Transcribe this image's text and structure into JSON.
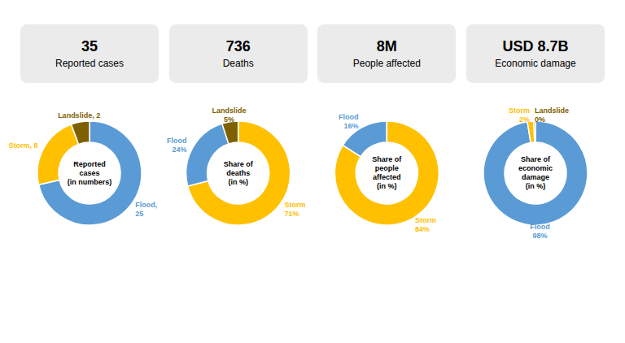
{
  "chart_data": [
    {
      "type": "donut",
      "title": "35",
      "subtitle": "Reported cases",
      "annotations": [
        "Reported\ncases\n(in numbers)"
      ],
      "values": [
        25,
        8,
        2
      ],
      "value_labels": [
        "Flood,\n25",
        "Storm, 8",
        "Landslide, 2"
      ],
      "colors": [
        "#5b9bd5",
        "#ffc000",
        "#7f6000"
      ],
      "data_labels": true
    },
    {
      "type": "donut",
      "title": "736",
      "subtitle": "Deaths",
      "annotations": [
        "Share of\ndeaths\n(in %)"
      ],
      "values": [
        71,
        24,
        5
      ],
      "value_labels": [
        "Storm\n71%",
        "Flood\n24%",
        "Landslide\n5%"
      ],
      "colors": [
        "#ffc000",
        "#5b9bd5",
        "#7f6000"
      ],
      "data_labels": true
    },
    {
      "type": "donut",
      "title": "8M",
      "subtitle": "People affected",
      "annotations": [
        "Share of\npeople\naffected\n(in %)"
      ],
      "values": [
        84,
        16,
        0.01
      ],
      "value_labels": [
        "Storm\n84%",
        "Flood\n16%",
        null
      ],
      "colors": [
        "#ffc000",
        "#5b9bd5",
        "#7f6000"
      ],
      "data_labels": true
    },
    {
      "type": "donut",
      "title": "USD 8.7B",
      "subtitle": "Economic damage",
      "annotations": [
        "Share of\neconomic\ndamage\n(in %)"
      ],
      "values": [
        98,
        2,
        0.5
      ],
      "value_labels": [
        "Flood\n98%",
        "Storm\n2%",
        "Landslide\n0%"
      ],
      "colors": [
        "#5b9bd5",
        "#ffc000",
        "#7f6000"
      ],
      "data_labels": true
    }
  ]
}
